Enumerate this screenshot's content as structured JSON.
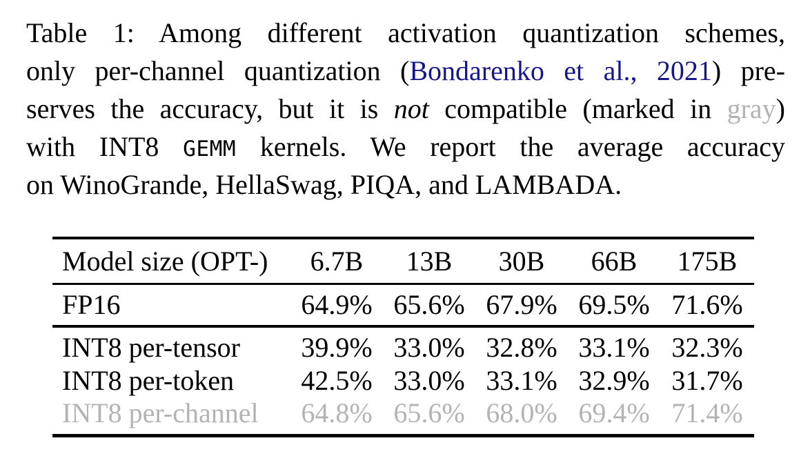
{
  "colors": {
    "text": "#000000",
    "citation": "#16168c",
    "gray": "#b3b3b3",
    "rule": "#000000"
  },
  "caption": {
    "lines": [
      {
        "justify": true,
        "segments": [
          {
            "t": "Table 1: Among different activation quantization schemes,",
            "style": "plain"
          }
        ]
      },
      {
        "justify": true,
        "segments": [
          {
            "t": "only per-channel quantization (",
            "style": "plain"
          },
          {
            "t": "Bondarenko et al., 2021",
            "style": "citation"
          },
          {
            "t": ") pre-",
            "style": "plain"
          }
        ]
      },
      {
        "justify": true,
        "segments": [
          {
            "t": "serves the accuracy, but it is ",
            "style": "plain"
          },
          {
            "t": "not",
            "style": "italic"
          },
          {
            "t": " compatible (marked in ",
            "style": "plain"
          },
          {
            "t": "gray",
            "style": "gray"
          },
          {
            "t": ")",
            "style": "plain"
          }
        ]
      },
      {
        "justify": true,
        "segments": [
          {
            "t": "with INT8 ",
            "style": "plain"
          },
          {
            "t": "GEMM",
            "style": "mono"
          },
          {
            "t": " kernels. We report the average accuracy",
            "style": "plain"
          }
        ]
      },
      {
        "justify": false,
        "segments": [
          {
            "t": "on WinoGrande, HellaSwag, PIQA, and LAMBADA.",
            "style": "plain"
          }
        ]
      }
    ]
  },
  "chart_data": {
    "type": "table",
    "title": "Average accuracy on WinoGrande, HellaSwag, PIQA, and LAMBADA",
    "categories": [
      "6.7B",
      "13B",
      "30B",
      "66B",
      "175B"
    ],
    "series": [
      {
        "name": "FP16",
        "values": [
          64.9,
          65.6,
          67.9,
          69.5,
          71.6
        ]
      },
      {
        "name": "INT8 per-tensor",
        "values": [
          39.9,
          33.0,
          32.8,
          33.1,
          32.3
        ]
      },
      {
        "name": "INT8 per-token",
        "values": [
          42.5,
          33.0,
          33.1,
          32.9,
          31.7
        ]
      },
      {
        "name": "INT8 per-channel",
        "values": [
          64.8,
          65.6,
          68.0,
          69.4,
          71.4
        ]
      }
    ]
  },
  "table": {
    "header": [
      "Model size (OPT-)",
      "6.7B",
      "13B",
      "30B",
      "66B",
      "175B"
    ],
    "groups": [
      {
        "rows": [
          {
            "label": "FP16",
            "values": [
              "64.9%",
              "65.6%",
              "67.9%",
              "69.5%",
              "71.6%"
            ],
            "gray": false
          }
        ]
      },
      {
        "rows": [
          {
            "label": "INT8 per-tensor",
            "values": [
              "39.9%",
              "33.0%",
              "32.8%",
              "33.1%",
              "32.3%"
            ],
            "gray": false
          },
          {
            "label": "INT8 per-token",
            "values": [
              "42.5%",
              "33.0%",
              "33.1%",
              "32.9%",
              "31.7%"
            ],
            "gray": false
          },
          {
            "label": "INT8 per-channel",
            "values": [
              "64.8%",
              "65.6%",
              "68.0%",
              "69.4%",
              "71.4%"
            ],
            "gray": true
          }
        ]
      }
    ]
  }
}
